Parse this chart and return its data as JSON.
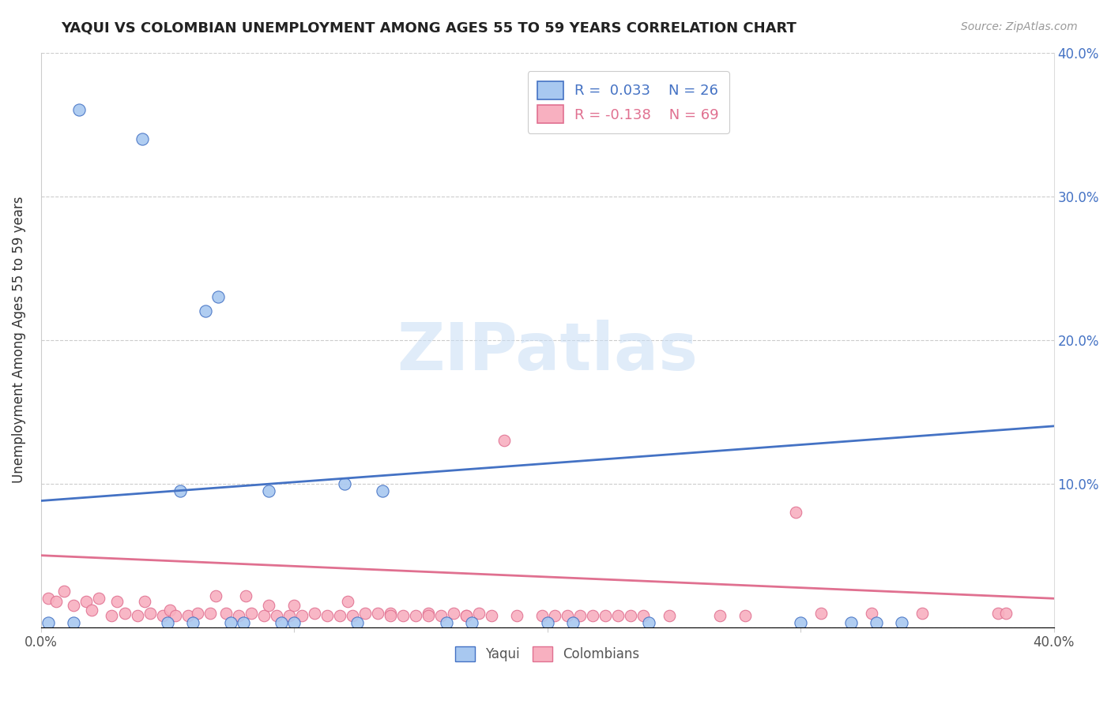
{
  "title": "YAQUI VS COLOMBIAN UNEMPLOYMENT AMONG AGES 55 TO 59 YEARS CORRELATION CHART",
  "source": "Source: ZipAtlas.com",
  "ylabel": "Unemployment Among Ages 55 to 59 years",
  "xlabel": "",
  "xlim": [
    0.0,
    0.4
  ],
  "ylim": [
    0.0,
    0.4
  ],
  "xticks": [
    0.0,
    0.1,
    0.2,
    0.3,
    0.4
  ],
  "yticks": [
    0.0,
    0.1,
    0.2,
    0.3,
    0.4
  ],
  "xticklabels": [
    "0.0%",
    "",
    "",
    "",
    "40.0%"
  ],
  "right_yticklabels": [
    "",
    "10.0%",
    "20.0%",
    "30.0%",
    "40.0%"
  ],
  "yaqui_color": "#a8c8f0",
  "colombian_color": "#f8b0c0",
  "yaqui_line_color": "#4472c4",
  "colombian_line_color": "#e07090",
  "R_yaqui": 0.033,
  "N_yaqui": 26,
  "R_colombian": -0.138,
  "N_colombian": 69,
  "legend_label_yaqui": "Yaqui",
  "legend_label_colombian": "Colombians",
  "watermark": "ZIPatlas",
  "background_color": "#ffffff",
  "grid_color": "#cccccc",
  "yaqui_x": [
    0.003,
    0.013,
    0.015,
    0.04,
    0.05,
    0.055,
    0.06,
    0.065,
    0.07,
    0.075,
    0.08,
    0.09,
    0.095,
    0.1,
    0.12,
    0.125,
    0.135,
    0.16,
    0.17,
    0.2,
    0.21,
    0.24,
    0.3,
    0.32,
    0.33,
    0.34
  ],
  "yaqui_y": [
    0.003,
    0.003,
    0.36,
    0.34,
    0.003,
    0.095,
    0.003,
    0.22,
    0.23,
    0.003,
    0.003,
    0.095,
    0.003,
    0.003,
    0.1,
    0.003,
    0.095,
    0.003,
    0.003,
    0.003,
    0.003,
    0.003,
    0.003,
    0.003,
    0.003,
    0.003
  ],
  "colombian_x": [
    0.003,
    0.006,
    0.009,
    0.013,
    0.018,
    0.02,
    0.023,
    0.028,
    0.03,
    0.033,
    0.038,
    0.041,
    0.043,
    0.048,
    0.051,
    0.053,
    0.058,
    0.062,
    0.067,
    0.069,
    0.073,
    0.078,
    0.081,
    0.083,
    0.088,
    0.09,
    0.093,
    0.098,
    0.1,
    0.103,
    0.108,
    0.113,
    0.118,
    0.121,
    0.123,
    0.128,
    0.133,
    0.138,
    0.143,
    0.148,
    0.153,
    0.158,
    0.163,
    0.168,
    0.173,
    0.178,
    0.183,
    0.188,
    0.198,
    0.203,
    0.208,
    0.213,
    0.218,
    0.223,
    0.228,
    0.233,
    0.238,
    0.248,
    0.268,
    0.278,
    0.298,
    0.308,
    0.328,
    0.348,
    0.153,
    0.138,
    0.168,
    0.378,
    0.381
  ],
  "colombian_y": [
    0.02,
    0.018,
    0.025,
    0.015,
    0.018,
    0.012,
    0.02,
    0.008,
    0.018,
    0.01,
    0.008,
    0.018,
    0.01,
    0.008,
    0.012,
    0.008,
    0.008,
    0.01,
    0.01,
    0.022,
    0.01,
    0.008,
    0.022,
    0.01,
    0.008,
    0.015,
    0.008,
    0.008,
    0.015,
    0.008,
    0.01,
    0.008,
    0.008,
    0.018,
    0.008,
    0.01,
    0.01,
    0.01,
    0.008,
    0.008,
    0.01,
    0.008,
    0.01,
    0.008,
    0.01,
    0.008,
    0.13,
    0.008,
    0.008,
    0.008,
    0.008,
    0.008,
    0.008,
    0.008,
    0.008,
    0.008,
    0.008,
    0.008,
    0.008,
    0.008,
    0.08,
    0.01,
    0.01,
    0.01,
    0.008,
    0.008,
    0.008,
    0.01,
    0.01
  ],
  "yaqui_trendline_x": [
    0.0,
    0.4
  ],
  "yaqui_trendline_y": [
    0.088,
    0.14
  ],
  "colombian_trendline_x": [
    0.0,
    0.4
  ],
  "colombian_trendline_y": [
    0.05,
    0.02
  ]
}
